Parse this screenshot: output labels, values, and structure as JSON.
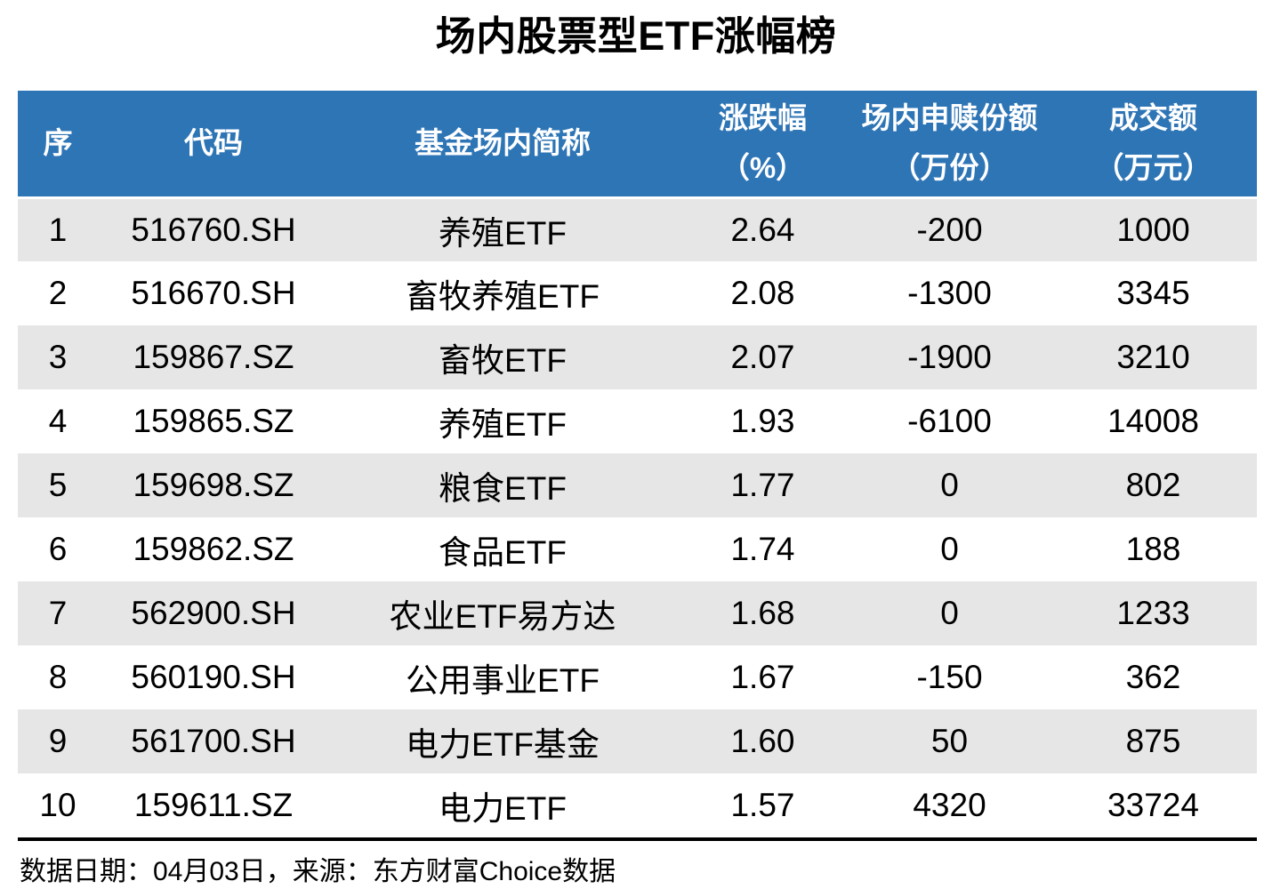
{
  "title": "场内股票型ETF涨幅榜",
  "colors": {
    "header_bg": "#2E75B6",
    "row_alt_bg": "#E7E6E6",
    "row_bg": "#FFFFFF",
    "header_text": "#FFFFFF",
    "text": "#000000"
  },
  "table": {
    "col_keys": [
      "rank",
      "code",
      "name",
      "change-pct",
      "subscription-shares",
      "turnover"
    ],
    "headers": [
      {
        "line1": "序",
        "line2": ""
      },
      {
        "line1": "代码",
        "line2": ""
      },
      {
        "line1": "基金场内简称",
        "line2": ""
      },
      {
        "line1": "涨跌幅",
        "line2": "（%）"
      },
      {
        "line1": "场内申赎份额",
        "line2": "（万份）"
      },
      {
        "line1": "成交额",
        "line2": "（万元）"
      }
    ],
    "rows": [
      [
        "1",
        "516760.SH",
        "养殖ETF",
        "2.64",
        "-200",
        "1000"
      ],
      [
        "2",
        "516670.SH",
        "畜牧养殖ETF",
        "2.08",
        "-1300",
        "3345"
      ],
      [
        "3",
        "159867.SZ",
        "畜牧ETF",
        "2.07",
        "-1900",
        "3210"
      ],
      [
        "4",
        "159865.SZ",
        "养殖ETF",
        "1.93",
        "-6100",
        "14008"
      ],
      [
        "5",
        "159698.SZ",
        "粮食ETF",
        "1.77",
        "0",
        "802"
      ],
      [
        "6",
        "159862.SZ",
        "食品ETF",
        "1.74",
        "0",
        "188"
      ],
      [
        "7",
        "562900.SH",
        "农业ETF易方达",
        "1.68",
        "0",
        "1233"
      ],
      [
        "8",
        "560190.SH",
        "公用事业ETF",
        "1.67",
        "-150",
        "362"
      ],
      [
        "9",
        "561700.SH",
        "电力ETF基金",
        "1.60",
        "50",
        "875"
      ],
      [
        "10",
        "159611.SZ",
        "电力ETF",
        "1.57",
        "4320",
        "33724"
      ]
    ]
  },
  "footer": {
    "text": "数据日期：04月03日，来源：东方财富Choice数据"
  },
  "chart_data": {
    "type": "table",
    "title": "场内股票型ETF涨幅榜",
    "columns": [
      "序",
      "代码",
      "基金场内简称",
      "涨跌幅（%）",
      "场内申赎份额（万份）",
      "成交额（万元）"
    ],
    "rows": [
      [
        1,
        "516760.SH",
        "养殖ETF",
        2.64,
        -200,
        1000
      ],
      [
        2,
        "516670.SH",
        "畜牧养殖ETF",
        2.08,
        -1300,
        3345
      ],
      [
        3,
        "159867.SZ",
        "畜牧ETF",
        2.07,
        -1900,
        3210
      ],
      [
        4,
        "159865.SZ",
        "养殖ETF",
        1.93,
        -6100,
        14008
      ],
      [
        5,
        "159698.SZ",
        "粮食ETF",
        1.77,
        0,
        802
      ],
      [
        6,
        "159862.SZ",
        "食品ETF",
        1.74,
        0,
        188
      ],
      [
        7,
        "562900.SH",
        "农业ETF易方达",
        1.68,
        0,
        1233
      ],
      [
        8,
        "560190.SH",
        "公用事业ETF",
        1.67,
        -150,
        362
      ],
      [
        9,
        "561700.SH",
        "电力ETF基金",
        1.6,
        50,
        875
      ],
      [
        10,
        "159611.SZ",
        "电力ETF",
        1.57,
        4320,
        33724
      ]
    ],
    "source_note": "数据日期：04月03日，来源：东方财富Choice数据",
    "layout": {
      "header_bg": "#2E75B6",
      "zebra_rows": true,
      "grid": false
    }
  }
}
